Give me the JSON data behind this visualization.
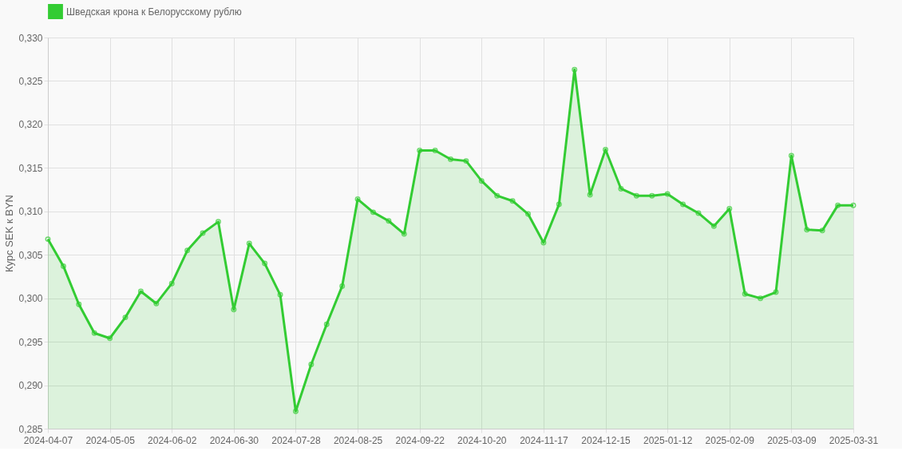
{
  "chart_data": {
    "type": "area",
    "categories": [
      "2024-04-07",
      null,
      null,
      null,
      "2024-05-05",
      null,
      null,
      null,
      "2024-06-02",
      null,
      null,
      null,
      "2024-06-30",
      null,
      null,
      null,
      "2024-07-28",
      null,
      null,
      null,
      "2024-08-25",
      null,
      null,
      null,
      "2024-09-22",
      null,
      null,
      null,
      "2024-10-20",
      null,
      null,
      null,
      "2024-11-17",
      null,
      null,
      null,
      "2024-12-15",
      null,
      null,
      null,
      "2025-01-12",
      null,
      null,
      null,
      "2025-02-09",
      null,
      null,
      null,
      "2025-03-09",
      null,
      null,
      null,
      "2025-03-31"
    ],
    "series": [
      {
        "name": "Шведская крона к Белорусскому рублю",
        "color": "#33cc33",
        "values": [
          0.3068,
          0.3037,
          0.2993,
          0.296,
          0.2954,
          0.2978,
          0.3008,
          0.2994,
          0.3017,
          0.3055,
          0.3075,
          0.3088,
          0.2987,
          0.3063,
          0.304,
          0.3004,
          0.287,
          0.2924,
          0.297,
          0.3014,
          0.3114,
          0.3099,
          0.3089,
          0.3074,
          0.317,
          0.317,
          0.316,
          0.3158,
          0.3135,
          0.3118,
          0.3112,
          0.3097,
          0.3064,
          0.3108,
          0.3263,
          0.3119,
          0.3171,
          0.3126,
          0.3118,
          0.3118,
          0.312,
          0.3108,
          0.3098,
          0.3083,
          0.3103,
          0.3005,
          0.3,
          0.3007,
          0.3164,
          0.3079,
          0.3078,
          0.3107,
          0.3107
        ]
      }
    ],
    "ylabel": "Курс SEK к BYN",
    "ylim": [
      0.285,
      0.33
    ],
    "yticks": [
      {
        "value": 0.285,
        "label": "0,285"
      },
      {
        "value": 0.29,
        "label": "0,290"
      },
      {
        "value": 0.295,
        "label": "0,295"
      },
      {
        "value": 0.3,
        "label": "0,300"
      },
      {
        "value": 0.305,
        "label": "0,305"
      },
      {
        "value": 0.31,
        "label": "0,310"
      },
      {
        "value": 0.315,
        "label": "0,315"
      },
      {
        "value": 0.32,
        "label": "0,320"
      },
      {
        "value": 0.325,
        "label": "0,325"
      },
      {
        "value": 0.33,
        "label": "0,330"
      }
    ],
    "grid": true,
    "legend": "top",
    "marker": "circle"
  }
}
